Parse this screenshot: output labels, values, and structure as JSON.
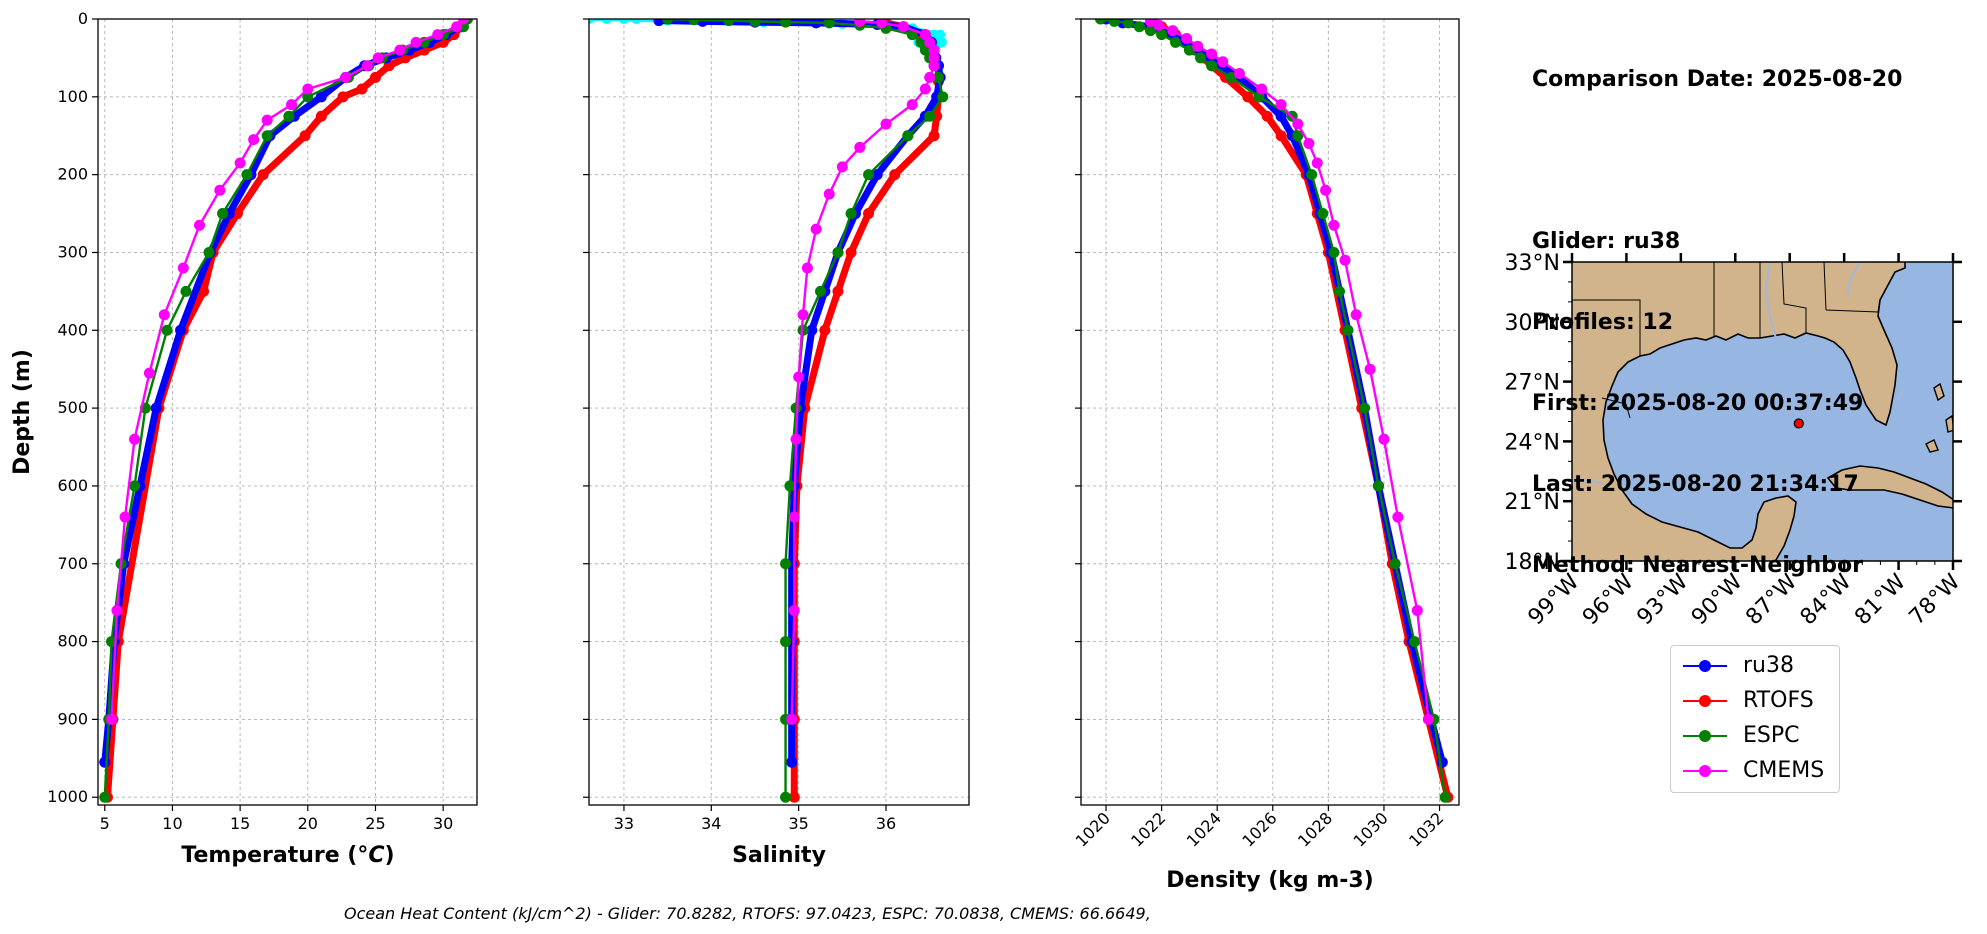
{
  "info": {
    "lines": [
      "Comparison Date: 2025-08-20",
      "",
      "Glider: ru38",
      "Profiles: 12",
      "First: 2025-08-20 00:37:49",
      "Last: 2025-08-20 21:34:17",
      "Method: Nearest-Neighbor"
    ]
  },
  "footer": "Ocean Heat Content (kJ/cm^2) - Glider: 70.8282,  RTOFS: 97.0423,  ESPC: 70.0838,  CMEMS: 66.6649,",
  "colors": {
    "ru38": "#0000ff",
    "RTOFS": "#ff0000",
    "ESPC": "#008000",
    "CMEMS": "#ff00ff",
    "glider_raw": "#00ffff",
    "land": "#d2b48c",
    "ocean": "#97b6e1",
    "grid": "#b0b0b0"
  },
  "legend": [
    {
      "name": "ru38",
      "color": "#0000ff"
    },
    {
      "name": "RTOFS",
      "color": "#ff0000"
    },
    {
      "name": "ESPC",
      "color": "#008000"
    },
    {
      "name": "CMEMS",
      "color": "#ff00ff"
    }
  ],
  "chart_data": [
    {
      "type": "line",
      "xlabel": "Temperature (°C)",
      "ylabel": "Depth (m)",
      "xlim": [
        4.5,
        32.5
      ],
      "ylim": [
        1010,
        0
      ],
      "xticks": [
        "5",
        "10",
        "15",
        "20",
        "25",
        "30"
      ],
      "yticks": [
        "0",
        "100",
        "200",
        "300",
        "400",
        "500",
        "600",
        "700",
        "800",
        "900",
        "1000"
      ],
      "grid": true,
      "series": [
        {
          "name": "ru38",
          "depth": [
            0,
            10,
            20,
            30,
            40,
            50,
            60,
            75,
            100,
            125,
            150,
            200,
            250,
            300,
            400,
            500,
            600,
            700,
            800,
            900,
            955
          ],
          "values": [
            31.6,
            31.2,
            30.2,
            29.0,
            27.5,
            25.8,
            24.2,
            22.8,
            21.0,
            19.0,
            17.2,
            15.8,
            14.2,
            12.8,
            10.6,
            8.8,
            7.6,
            6.4,
            5.7,
            5.3,
            5.0
          ]
        },
        {
          "name": "RTOFS",
          "depth": [
            0,
            10,
            20,
            30,
            40,
            50,
            60,
            75,
            90,
            100,
            125,
            150,
            200,
            250,
            300,
            350,
            400,
            500,
            800,
            900,
            1000
          ],
          "values": [
            31.6,
            31.3,
            30.8,
            30.0,
            28.6,
            27.2,
            26.0,
            25.0,
            24.0,
            22.6,
            21.0,
            19.8,
            16.7,
            14.8,
            13.0,
            12.3,
            10.8,
            9.0,
            6.0,
            5.6,
            5.2
          ]
        },
        {
          "name": "ESPC",
          "depth": [
            0,
            10,
            20,
            30,
            40,
            50,
            60,
            75,
            100,
            125,
            150,
            200,
            250,
            300,
            350,
            400,
            500,
            600,
            700,
            800,
            900,
            1000
          ],
          "values": [
            31.8,
            31.5,
            30.0,
            28.6,
            27.0,
            25.5,
            24.5,
            23.0,
            20.0,
            18.6,
            17.0,
            15.5,
            13.7,
            12.7,
            11.0,
            9.6,
            8.0,
            7.2,
            6.2,
            5.5,
            5.3,
            5.0
          ]
        },
        {
          "name": "CMEMS",
          "depth": [
            0,
            10,
            20,
            30,
            40,
            50,
            60,
            75,
            90,
            110,
            130,
            155,
            185,
            220,
            265,
            320,
            380,
            455,
            540,
            640,
            760,
            900
          ],
          "values": [
            31.5,
            31.0,
            29.6,
            28.0,
            26.8,
            25.2,
            24.4,
            22.8,
            20.0,
            18.8,
            17.0,
            16.0,
            15.0,
            13.5,
            12.0,
            10.8,
            9.4,
            8.3,
            7.2,
            6.5,
            5.9,
            5.5
          ]
        }
      ]
    },
    {
      "type": "line",
      "xlabel": "Salinity",
      "ylabel": "",
      "xlim": [
        32.6,
        36.95
      ],
      "ylim": [
        1010,
        0
      ],
      "xticks": [
        "33",
        "34",
        "35",
        "36"
      ],
      "grid": true,
      "series": [
        {
          "name": "ru38",
          "depth": [
            2,
            3,
            4,
            5,
            7,
            10,
            20,
            30,
            40,
            50,
            60,
            75,
            100,
            125,
            150,
            200,
            250,
            300,
            350,
            400,
            500,
            600,
            700,
            800,
            900,
            955
          ],
          "values": [
            33.4,
            33.9,
            34.5,
            35.2,
            35.9,
            36.2,
            36.45,
            36.52,
            36.55,
            36.57,
            36.6,
            36.62,
            36.58,
            36.45,
            36.25,
            35.9,
            35.65,
            35.45,
            35.3,
            35.15,
            35.02,
            34.95,
            34.92,
            34.92,
            34.92,
            34.92
          ]
        },
        {
          "name": "RTOFS",
          "depth": [
            5,
            10,
            20,
            30,
            40,
            60,
            80,
            100,
            125,
            150,
            200,
            250,
            300,
            350,
            400,
            500,
            600,
            700,
            800,
            900,
            1000
          ],
          "values": [
            36.0,
            36.2,
            36.4,
            36.5,
            36.55,
            36.6,
            36.6,
            36.6,
            36.58,
            36.55,
            36.1,
            35.8,
            35.6,
            35.45,
            35.3,
            35.07,
            34.98,
            34.95,
            34.95,
            34.95,
            34.95
          ]
        },
        {
          "name": "ESPC",
          "depth": [
            0,
            1,
            2,
            3,
            4,
            5,
            8,
            12,
            20,
            30,
            40,
            50,
            60,
            75,
            100,
            125,
            150,
            200,
            250,
            300,
            350,
            400,
            500,
            600,
            700,
            800,
            900,
            1000
          ],
          "values": [
            33.5,
            33.8,
            34.2,
            34.5,
            34.85,
            35.35,
            35.7,
            36.0,
            36.3,
            36.4,
            36.45,
            36.5,
            36.55,
            36.6,
            36.65,
            36.5,
            36.25,
            35.8,
            35.6,
            35.45,
            35.25,
            35.05,
            34.97,
            34.9,
            34.85,
            34.85,
            34.85,
            34.85
          ]
        },
        {
          "name": "CMEMS",
          "depth": [
            3,
            5,
            10,
            20,
            30,
            40,
            50,
            60,
            75,
            90,
            110,
            135,
            165,
            190,
            225,
            270,
            320,
            380,
            460,
            540,
            640,
            760,
            900
          ],
          "values": [
            35.7,
            35.95,
            36.2,
            36.45,
            36.5,
            36.55,
            36.55,
            36.55,
            36.5,
            36.45,
            36.3,
            36.0,
            35.7,
            35.5,
            35.35,
            35.2,
            35.1,
            35.05,
            35.0,
            34.97,
            34.95,
            34.95,
            34.92
          ]
        }
      ],
      "raw_glider_color": "cyan"
    },
    {
      "type": "line",
      "xlabel": "Density (kg m-3)",
      "ylabel": "",
      "xlim": [
        1019.1,
        1032.7
      ],
      "ylim": [
        1010,
        0
      ],
      "xticks": [
        "1020",
        "1022",
        "1024",
        "1026",
        "1028",
        "1030",
        "1032"
      ],
      "grid": true,
      "series": [
        {
          "name": "ru38",
          "depth": [
            0,
            5,
            10,
            20,
            30,
            40,
            50,
            60,
            75,
            100,
            125,
            150,
            200,
            250,
            300,
            400,
            500,
            600,
            700,
            800,
            900,
            955
          ],
          "values": [
            1020.0,
            1020.6,
            1021.6,
            1022.4,
            1022.9,
            1023.3,
            1023.7,
            1024.1,
            1024.8,
            1025.6,
            1026.3,
            1026.7,
            1027.3,
            1027.7,
            1028.1,
            1028.7,
            1029.3,
            1029.8,
            1030.4,
            1031.0,
            1031.7,
            1032.1
          ]
        },
        {
          "name": "RTOFS",
          "depth": [
            5,
            10,
            20,
            30,
            40,
            50,
            60,
            75,
            100,
            125,
            150,
            200,
            250,
            300,
            400,
            500,
            600,
            700,
            800,
            900,
            1000
          ],
          "values": [
            1021.7,
            1022.0,
            1022.5,
            1022.9,
            1023.2,
            1023.5,
            1023.8,
            1024.3,
            1025.1,
            1025.8,
            1026.3,
            1027.2,
            1027.6,
            1028.0,
            1028.6,
            1029.2,
            1029.8,
            1030.3,
            1030.9,
            1031.6,
            1032.3
          ]
        },
        {
          "name": "ESPC",
          "depth": [
            0,
            3,
            5,
            10,
            15,
            20,
            30,
            40,
            50,
            60,
            75,
            100,
            125,
            150,
            200,
            250,
            300,
            350,
            400,
            500,
            600,
            700,
            800,
            900,
            1000
          ],
          "values": [
            1019.8,
            1020.3,
            1020.8,
            1021.2,
            1021.6,
            1022.0,
            1022.5,
            1023.0,
            1023.4,
            1023.8,
            1024.5,
            1025.5,
            1026.7,
            1026.9,
            1027.4,
            1027.8,
            1028.2,
            1028.4,
            1028.7,
            1029.3,
            1029.8,
            1030.4,
            1031.1,
            1031.8,
            1032.2
          ]
        },
        {
          "name": "CMEMS",
          "depth": [
            3,
            8,
            15,
            25,
            35,
            45,
            55,
            70,
            90,
            110,
            135,
            160,
            185,
            220,
            265,
            310,
            380,
            450,
            540,
            640,
            760,
            900
          ],
          "values": [
            1021.6,
            1021.9,
            1022.4,
            1022.9,
            1023.3,
            1023.8,
            1024.2,
            1024.8,
            1025.6,
            1026.3,
            1026.9,
            1027.3,
            1027.6,
            1027.9,
            1028.2,
            1028.6,
            1029.0,
            1029.5,
            1030.0,
            1030.5,
            1031.2,
            1031.6
          ]
        }
      ]
    }
  ],
  "map": {
    "lat_ticks": [
      "33°N",
      "30°N",
      "27°N",
      "24°N",
      "21°N",
      "18°N"
    ],
    "lon_ticks": [
      "99°W",
      "96°W",
      "93°W",
      "90°W",
      "87°W",
      "84°W",
      "81°W",
      "78°W"
    ],
    "extent": {
      "lon": [
        -99,
        -78
      ],
      "lat": [
        18,
        33
      ]
    },
    "glider_position": {
      "lon": -86.5,
      "lat": 24.9
    },
    "marker_color": "#ff0000"
  }
}
